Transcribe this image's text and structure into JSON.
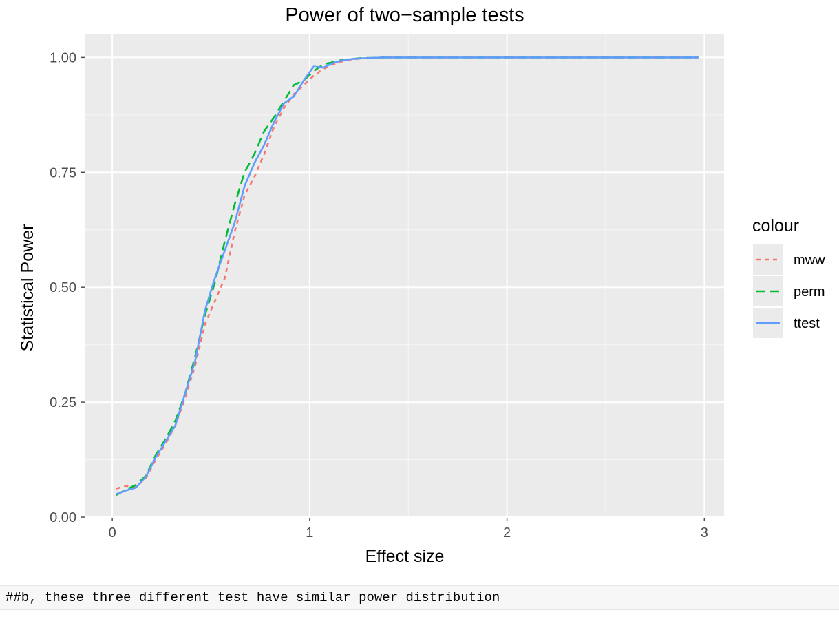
{
  "chart_data": {
    "type": "line",
    "title": "Power of two−sample tests",
    "xlabel": "Effect size",
    "ylabel": "Statistical Power",
    "xlim": [
      -0.14,
      3.1
    ],
    "ylim": [
      0,
      1.05
    ],
    "x_ticks": [
      0,
      1,
      2,
      3
    ],
    "x_tick_labels": [
      "0",
      "1",
      "2",
      "3"
    ],
    "y_ticks": [
      0,
      0.25,
      0.5,
      0.75,
      1
    ],
    "y_tick_labels": [
      "0.00",
      "0.25",
      "0.50",
      "0.75",
      "1.00"
    ],
    "grid": true,
    "legend": {
      "title": "colour",
      "position": "right"
    },
    "x": [
      0.02,
      0.07,
      0.12,
      0.17,
      0.22,
      0.27,
      0.32,
      0.37,
      0.42,
      0.47,
      0.52,
      0.57,
      0.62,
      0.67,
      0.72,
      0.77,
      0.82,
      0.87,
      0.92,
      0.97,
      1.02,
      1.07,
      1.12,
      1.17,
      1.22,
      1.27,
      1.32,
      1.37,
      1.42,
      1.47,
      1.52,
      1.57,
      1.62,
      1.67,
      1.72,
      1.77,
      1.82,
      1.87,
      1.92,
      1.97,
      2.02,
      2.07,
      2.12,
      2.17,
      2.22,
      2.27,
      2.32,
      2.37,
      2.42,
      2.47,
      2.52,
      2.57,
      2.62,
      2.67,
      2.72,
      2.77,
      2.82,
      2.87,
      2.92,
      2.97
    ],
    "series": [
      {
        "name": "mww",
        "color": "#F8766D",
        "dash": "6,6",
        "values": [
          0.062,
          0.068,
          0.065,
          0.085,
          0.125,
          0.16,
          0.2,
          0.26,
          0.33,
          0.42,
          0.47,
          0.52,
          0.62,
          0.7,
          0.74,
          0.79,
          0.85,
          0.89,
          0.92,
          0.94,
          0.96,
          0.975,
          0.985,
          0.992,
          0.996,
          0.998,
          0.999,
          1.0,
          1.0,
          1.0,
          1.0,
          1.0,
          1.0,
          1.0,
          1.0,
          1.0,
          1.0,
          1.0,
          1.0,
          1.0,
          1.0,
          1.0,
          1.0,
          1.0,
          1.0,
          1.0,
          1.0,
          1.0,
          1.0,
          1.0,
          1.0,
          1.0,
          1.0,
          1.0,
          1.0,
          1.0,
          1.0,
          1.0,
          1.0,
          1.0
        ]
      },
      {
        "name": "perm",
        "color": "#00BA38",
        "dash": "13,7",
        "values": [
          0.048,
          0.06,
          0.07,
          0.09,
          0.135,
          0.17,
          0.21,
          0.27,
          0.35,
          0.44,
          0.51,
          0.6,
          0.68,
          0.75,
          0.79,
          0.84,
          0.87,
          0.905,
          0.94,
          0.95,
          0.97,
          0.985,
          0.99,
          0.995,
          0.997,
          0.999,
          0.999,
          1.0,
          1.0,
          1.0,
          1.0,
          1.0,
          1.0,
          1.0,
          1.0,
          1.0,
          1.0,
          1.0,
          1.0,
          1.0,
          1.0,
          1.0,
          1.0,
          1.0,
          1.0,
          1.0,
          1.0,
          1.0,
          1.0,
          1.0,
          1.0,
          1.0,
          1.0,
          1.0,
          1.0,
          1.0,
          1.0,
          1.0,
          1.0,
          1.0
        ]
      },
      {
        "name": "ttest",
        "color": "#619CFF",
        "dash": "",
        "values": [
          0.05,
          0.058,
          0.064,
          0.088,
          0.13,
          0.165,
          0.2,
          0.27,
          0.34,
          0.45,
          0.52,
          0.58,
          0.64,
          0.72,
          0.77,
          0.81,
          0.86,
          0.9,
          0.915,
          0.95,
          0.98,
          0.978,
          0.988,
          0.994,
          0.997,
          0.998,
          0.999,
          1.0,
          1.0,
          1.0,
          1.0,
          1.0,
          1.0,
          1.0,
          1.0,
          1.0,
          1.0,
          1.0,
          1.0,
          1.0,
          1.0,
          1.0,
          1.0,
          1.0,
          1.0,
          1.0,
          1.0,
          1.0,
          1.0,
          1.0,
          1.0,
          1.0,
          1.0,
          1.0,
          1.0,
          1.0,
          1.0,
          1.0,
          1.0,
          1.0
        ]
      }
    ],
    "colors": {
      "panel_bg": "#EBEBEB",
      "grid": "#FFFFFF",
      "tick": "#4D4D4D"
    }
  },
  "note": {
    "text": "##b, these three different test have similar power distribution"
  }
}
